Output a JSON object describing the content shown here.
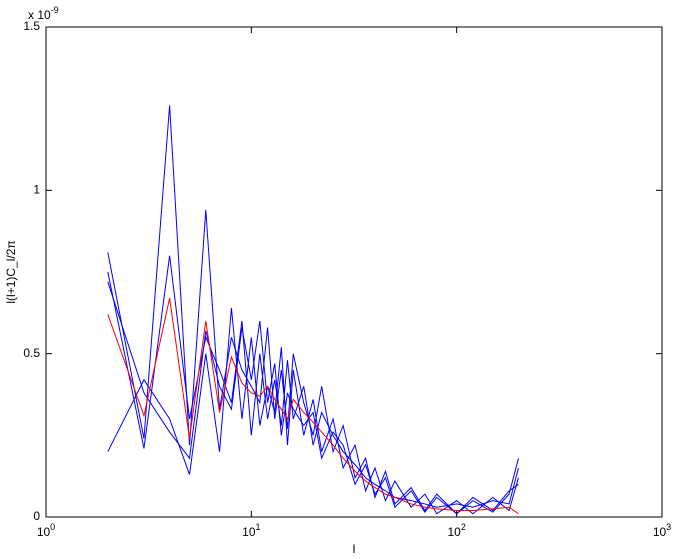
{
  "chart_data": {
    "type": "line",
    "x_scale": "log",
    "x_label": "l",
    "y_label": "l(l+1)C_l/2π",
    "y_exponent": {
      "base": "x 10",
      "power": "-9"
    },
    "xlim": [
      1,
      1000
    ],
    "ylim": [
      0,
      1.5
    ],
    "xticks": [
      {
        "value": 1,
        "label": "10",
        "power": "0"
      },
      {
        "value": 10,
        "label": "10",
        "power": "1"
      },
      {
        "value": 100,
        "label": "10",
        "power": "2"
      },
      {
        "value": 1000,
        "label": "10",
        "power": "3"
      }
    ],
    "yticks": [
      0,
      0.5,
      1,
      1.5
    ],
    "x": [
      2,
      3,
      4,
      5,
      6,
      7,
      8,
      9,
      10,
      11,
      12,
      13,
      14,
      15,
      16,
      18,
      20,
      22,
      25,
      28,
      32,
      36,
      40,
      45,
      50,
      60,
      70,
      80,
      100,
      120,
      150,
      180,
      200
    ],
    "series": [
      {
        "color": "#0000ff",
        "values": [
          0.81,
          0.24,
          1.26,
          0.22,
          0.94,
          0.33,
          0.55,
          0.45,
          0.4,
          0.35,
          0.58,
          0.3,
          0.45,
          0.27,
          0.5,
          0.35,
          0.25,
          0.4,
          0.2,
          0.28,
          0.12,
          0.18,
          0.06,
          0.14,
          0.04,
          0.09,
          0.02,
          0.07,
          0.01,
          0.06,
          0.02,
          0.08,
          0.1
        ]
      },
      {
        "color": "#0000ff",
        "values": [
          0.2,
          0.42,
          0.3,
          0.13,
          0.5,
          0.2,
          0.64,
          0.3,
          0.55,
          0.28,
          0.4,
          0.32,
          0.52,
          0.22,
          0.45,
          0.25,
          0.36,
          0.2,
          0.3,
          0.15,
          0.22,
          0.08,
          0.15,
          0.05,
          0.11,
          0.03,
          0.07,
          0.01,
          0.05,
          0.01,
          0.06,
          0.02,
          0.12
        ]
      },
      {
        "color": "#0000ff",
        "values": [
          0.75,
          0.21,
          0.8,
          0.3,
          0.55,
          0.45,
          0.35,
          0.6,
          0.25,
          0.5,
          0.3,
          0.42,
          0.28,
          0.48,
          0.3,
          0.4,
          0.22,
          0.32,
          0.25,
          0.2,
          0.16,
          0.12,
          0.1,
          0.08,
          0.06,
          0.05,
          0.04,
          0.03,
          0.04,
          0.03,
          0.05,
          0.04,
          0.15
        ]
      },
      {
        "color": "#0000ff",
        "values": [
          0.72,
          0.38,
          0.26,
          0.18,
          0.57,
          0.4,
          0.33,
          0.58,
          0.42,
          0.6,
          0.35,
          0.47,
          0.25,
          0.38,
          0.33,
          0.28,
          0.32,
          0.18,
          0.26,
          0.22,
          0.1,
          0.16,
          0.07,
          0.12,
          0.03,
          0.08,
          0.015,
          0.06,
          0.01,
          0.05,
          0.015,
          0.07,
          0.18
        ]
      },
      {
        "color": "#ff0000",
        "values": [
          0.62,
          0.31,
          0.67,
          0.24,
          0.6,
          0.32,
          0.49,
          0.41,
          0.38,
          0.37,
          0.4,
          0.36,
          0.33,
          0.3,
          0.36,
          0.32,
          0.29,
          0.26,
          0.22,
          0.18,
          0.14,
          0.11,
          0.09,
          0.07,
          0.06,
          0.04,
          0.03,
          0.025,
          0.02,
          0.02,
          0.025,
          0.03,
          0.01
        ]
      }
    ]
  }
}
